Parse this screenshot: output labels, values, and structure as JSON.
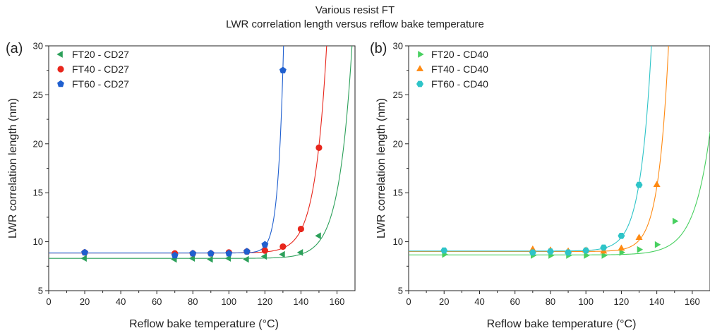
{
  "title_lines": [
    "Various resist FT",
    "LWR correlation length versus reflow bake temperature"
  ],
  "chart_data": [
    {
      "type": "scatter",
      "panel_label": "(a)",
      "xlabel": "Reflow bake temperature (°C)",
      "ylabel": "LWR correlation length (nm)",
      "xlim": [
        0,
        170
      ],
      "ylim": [
        5,
        30
      ],
      "xticks": [
        0,
        20,
        40,
        60,
        80,
        100,
        120,
        140,
        160
      ],
      "yticks": [
        5,
        10,
        15,
        20,
        25,
        30
      ],
      "legend_position": "top-left",
      "series": [
        {
          "name": "FT20 - CD27",
          "marker": "triangle-left",
          "color": "#2ca05a",
          "x": [
            20,
            70,
            80,
            90,
            100,
            110,
            120,
            130,
            140,
            150
          ],
          "y": [
            8.3,
            8.2,
            8.3,
            8.2,
            8.3,
            8.2,
            8.5,
            8.7,
            8.9,
            10.6
          ],
          "fit": {
            "base": 8.3,
            "amp": 0.0266,
            "xref": 120,
            "rate": 0.1387
          }
        },
        {
          "name": "FT40 - CD27",
          "marker": "circle",
          "color": "#e8261c",
          "x": [
            20,
            70,
            80,
            90,
            100,
            110,
            120,
            130,
            140,
            150
          ],
          "y": [
            8.9,
            8.8,
            8.8,
            8.8,
            8.9,
            9.0,
            9.1,
            9.5,
            11.3,
            19.6
          ],
          "fit": {
            "base": 8.85,
            "amp": 0.1064,
            "xref": 120,
            "rate": 0.1545
          }
        },
        {
          "name": "FT60 - CD27",
          "marker": "pentagon",
          "color": "#1f5fcf",
          "x": [
            20,
            70,
            80,
            90,
            100,
            110,
            120,
            130
          ],
          "y": [
            8.9,
            8.6,
            8.8,
            8.8,
            8.8,
            9.0,
            9.7,
            27.5
          ],
          "fit": {
            "base": 8.85,
            "amp": 0.7,
            "xref": 120,
            "rate": 0.3292
          }
        }
      ]
    },
    {
      "type": "scatter",
      "panel_label": "(b)",
      "xlabel": "Reflow bake temperature (°C)",
      "ylabel": "LWR correlation length (nm)",
      "xlim": [
        0,
        170
      ],
      "ylim": [
        5,
        30
      ],
      "xticks": [
        0,
        20,
        40,
        60,
        80,
        100,
        120,
        140,
        160
      ],
      "yticks": [
        5,
        10,
        15,
        20,
        25,
        30
      ],
      "legend_position": "top-left",
      "series": [
        {
          "name": "FT20 - CD40",
          "marker": "triangle-right",
          "color": "#48d060",
          "x": [
            20,
            70,
            80,
            90,
            100,
            110,
            120,
            130,
            140,
            150
          ],
          "y": [
            8.7,
            8.6,
            8.6,
            8.6,
            8.6,
            8.6,
            8.9,
            9.2,
            9.7,
            12.1
          ],
          "fit": {
            "base": 8.65,
            "amp": 0.0476,
            "xref": 120,
            "rate": 0.1115
          }
        },
        {
          "name": "FT40 - CD40",
          "marker": "triangle-up",
          "color": "#ff8a12",
          "x": [
            70,
            80,
            90,
            100,
            110,
            120,
            130,
            140
          ],
          "y": [
            9.2,
            9.1,
            9.0,
            9.1,
            9.0,
            9.3,
            10.4,
            15.8
          ],
          "fit": {
            "base": 9.0,
            "amp": 0.2,
            "xref": 120,
            "rate": 0.1749
          }
        },
        {
          "name": "FT60 - CD40",
          "marker": "hexagon",
          "color": "#2ec4c8",
          "x": [
            20,
            70,
            80,
            90,
            100,
            110,
            120,
            130
          ],
          "y": [
            9.1,
            8.9,
            9.0,
            8.9,
            9.1,
            9.4,
            10.6,
            15.8
          ],
          "fit": {
            "base": 9.05,
            "amp": 1.4,
            "xref": 120,
            "rate": 0.1596
          }
        }
      ]
    }
  ]
}
